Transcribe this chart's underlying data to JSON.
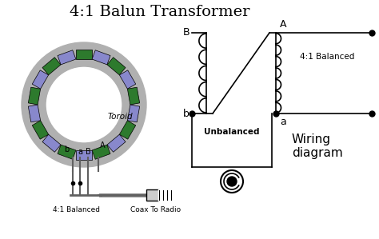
{
  "title": "4:1 Balun Transformer",
  "title_fontsize": 14,
  "bg_color": "#ffffff",
  "toroid_color": "#b0b0b0",
  "coil_green": "#2d7a2d",
  "coil_blue": "#8888cc",
  "label_toroid": "Toroid",
  "label_4_1_balanced": "4:1 Balanced",
  "label_coax": "Coax To Radio",
  "label_unbalanced": "Unbalanced",
  "label_wiring": "Wiring\ndiagram",
  "label_B_top": "B",
  "label_A_top": "A",
  "label_b_bot": "b",
  "label_a_bot": "a"
}
